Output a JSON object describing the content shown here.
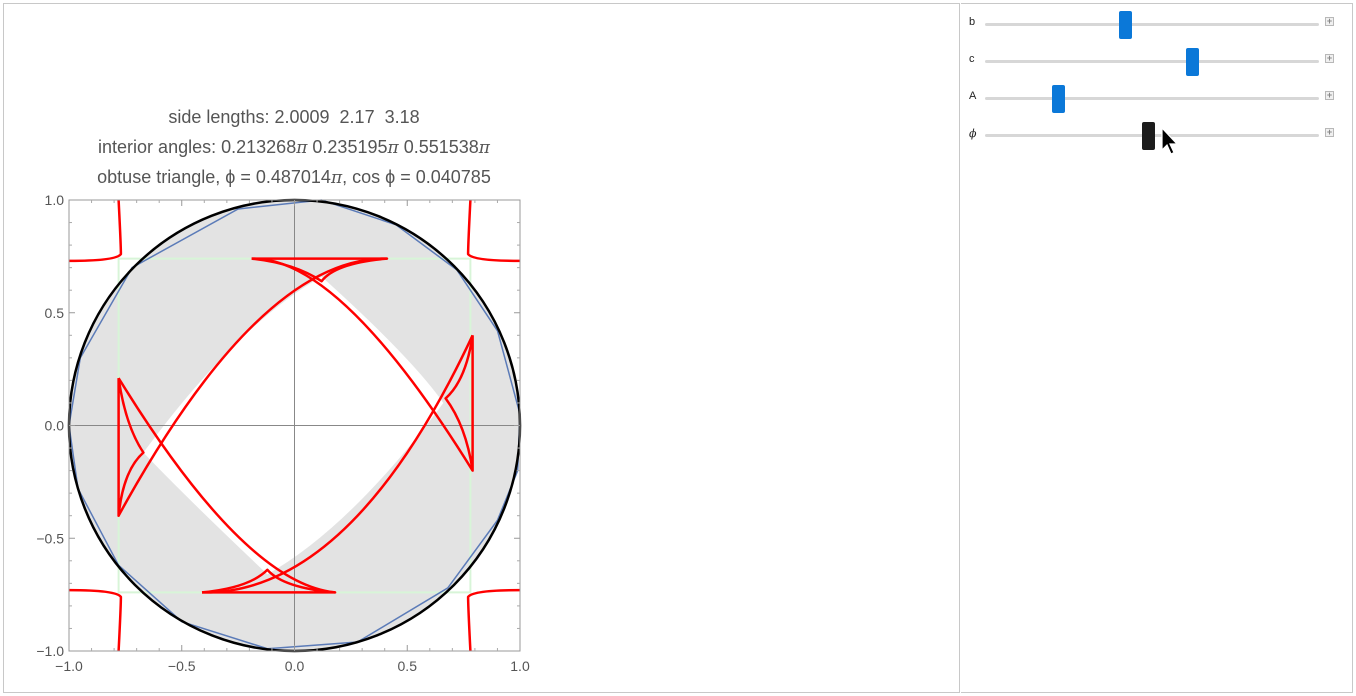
{
  "info": {
    "side_lengths_label": "side lengths:",
    "side_lengths": "2.0009  2.17  3.18",
    "angles_label": "interior angles:",
    "angle_1": "0.213268",
    "angle_2": "0.235195",
    "angle_3": "0.551538",
    "pi_symbol": "π",
    "triangle_type": "obtuse triangle,",
    "phi_text": "ϕ = 0.487014",
    "cos_text": "cos ϕ = 0.040785"
  },
  "plot": {
    "x_ticks": [
      "−1.0",
      "−0.5",
      "0.0",
      "0.5",
      "1.0"
    ],
    "y_ticks": [
      "1.0",
      "0.5",
      "0.0",
      "−0.5",
      "−1.0"
    ],
    "colors": {
      "circle": "#000000",
      "disk_fill": "#e3e3e3",
      "curve": "#ff0000",
      "polygon": "#5b7bb8",
      "rectangle": "#d8f5d8"
    }
  },
  "controls": {
    "sliders": [
      {
        "name": "b",
        "value": 0.42,
        "active": false
      },
      {
        "name": "c",
        "value": 0.62,
        "active": false
      },
      {
        "name": "A",
        "value": 0.22,
        "active": false
      },
      {
        "name": "ϕ",
        "value": 0.487,
        "active": true
      }
    ],
    "plus_label": "+"
  }
}
